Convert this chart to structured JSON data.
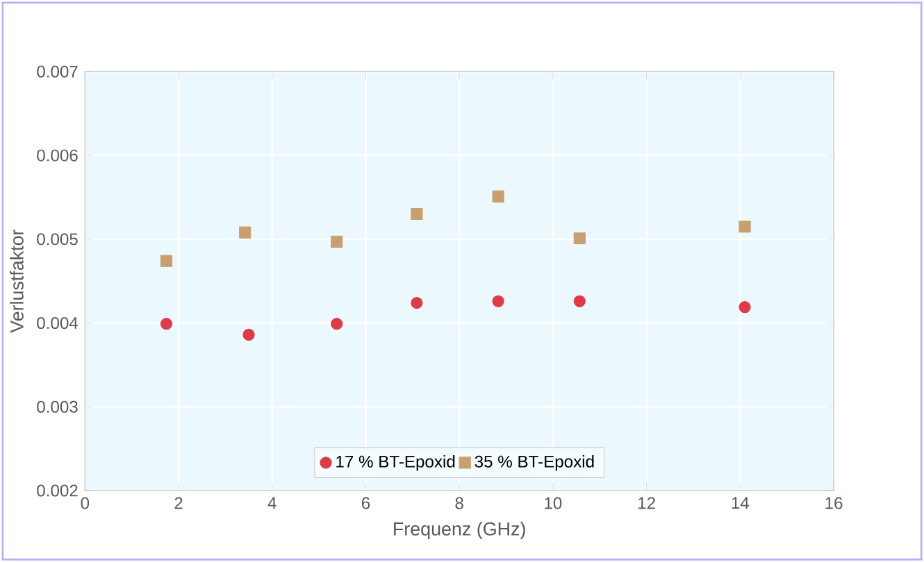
{
  "chart_data": {
    "type": "scatter",
    "xlabel": "Frequenz (GHz)",
    "ylabel": "Verlustfaktor",
    "xlim": [
      0,
      16
    ],
    "xticks": [
      0,
      2,
      4,
      6,
      8,
      10,
      12,
      14,
      16
    ],
    "ylim": [
      0.002,
      0.007
    ],
    "yticks": [
      0.002,
      0.003,
      0.004,
      0.005,
      0.006,
      0.007
    ],
    "grid": true,
    "legend": "bottom",
    "series": [
      {
        "name": "17 % BT-Epoxid",
        "color": "#e03a48",
        "marker": "circle",
        "x": [
          1.74,
          3.5,
          5.38,
          7.09,
          8.83,
          10.57,
          14.1
        ],
        "values": [
          0.00399,
          0.00386,
          0.00399,
          0.00424,
          0.00426,
          0.00426,
          0.00419
        ]
      },
      {
        "name": "35 % BT-Epoxid",
        "color": "#c8a070",
        "marker": "square",
        "x": [
          1.74,
          3.42,
          5.38,
          7.09,
          8.83,
          10.57,
          14.1
        ],
        "values": [
          0.00474,
          0.00508,
          0.00497,
          0.0053,
          0.00551,
          0.00501,
          0.00515
        ]
      }
    ]
  }
}
